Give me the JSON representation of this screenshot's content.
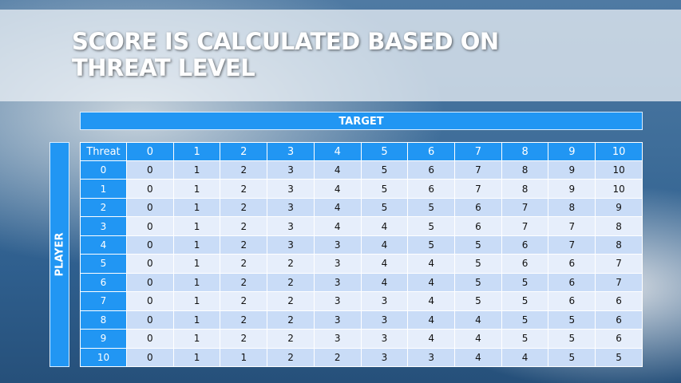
{
  "title": "SCORE IS CALCULATED BASED ON THREAT LEVEL",
  "target_label": "TARGET",
  "player_label": "PLAYER",
  "table": {
    "corner": "Threat",
    "columns": [
      "0",
      "1",
      "2",
      "3",
      "4",
      "5",
      "6",
      "7",
      "8",
      "9",
      "10"
    ],
    "rows": [
      {
        "label": "0",
        "values": [
          0,
          1,
          2,
          3,
          4,
          5,
          6,
          7,
          8,
          9,
          10
        ]
      },
      {
        "label": "1",
        "values": [
          0,
          1,
          2,
          3,
          4,
          5,
          6,
          7,
          8,
          9,
          10
        ]
      },
      {
        "label": "2",
        "values": [
          0,
          1,
          2,
          3,
          4,
          5,
          5,
          6,
          7,
          8,
          9
        ]
      },
      {
        "label": "3",
        "values": [
          0,
          1,
          2,
          3,
          4,
          4,
          5,
          6,
          7,
          7,
          8
        ]
      },
      {
        "label": "4",
        "values": [
          0,
          1,
          2,
          3,
          3,
          4,
          5,
          5,
          6,
          7,
          8
        ]
      },
      {
        "label": "5",
        "values": [
          0,
          1,
          2,
          2,
          3,
          4,
          4,
          5,
          6,
          6,
          7
        ]
      },
      {
        "label": "6",
        "values": [
          0,
          1,
          2,
          2,
          3,
          4,
          4,
          5,
          5,
          6,
          7
        ]
      },
      {
        "label": "7",
        "values": [
          0,
          1,
          2,
          2,
          3,
          3,
          4,
          5,
          5,
          6,
          6
        ]
      },
      {
        "label": "8",
        "values": [
          0,
          1,
          2,
          2,
          3,
          3,
          4,
          4,
          5,
          5,
          6
        ]
      },
      {
        "label": "9",
        "values": [
          0,
          1,
          2,
          2,
          3,
          3,
          4,
          4,
          5,
          5,
          6
        ]
      },
      {
        "label": "10",
        "values": [
          0,
          1,
          1,
          2,
          2,
          3,
          3,
          4,
          4,
          5,
          5
        ]
      }
    ]
  },
  "colors": {
    "header": "#2196f3",
    "row_dark": "#c9dcf7",
    "row_light": "#e6eefb"
  }
}
